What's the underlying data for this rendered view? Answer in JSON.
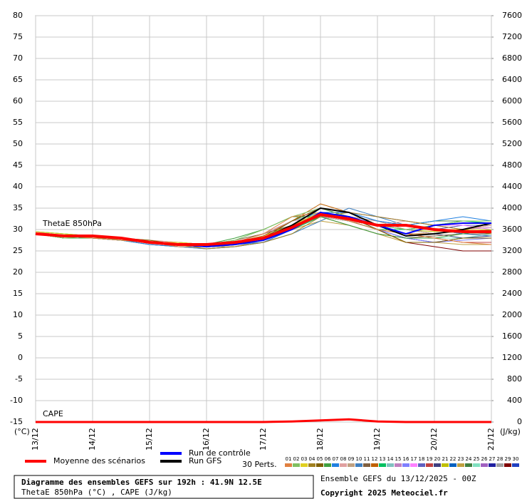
{
  "chart_data": {
    "type": "line",
    "title": "Diagramme des ensembles GEFS sur 192h : 41.9N 12.5E",
    "subtitle": "ThetaE 850hPa (°C) , CAPE (J/kg)",
    "run_label": "Ensemble GEFS du 13/12/2025 - 00Z",
    "copyright": "Copyright 2025 Meteociel.fr",
    "annotations": [
      "ThetaE 850hPa",
      "CAPE"
    ],
    "y_label": "(°C)",
    "y2_label": "(J/kg)",
    "perts_label": "30 Perts.",
    "grid": true,
    "x": [
      0,
      0.5,
      1,
      1.5,
      2,
      2.5,
      3,
      3.5,
      4,
      4.5,
      5,
      5.5,
      6,
      6.5,
      7,
      7.5,
      8
    ],
    "xlim": [
      0,
      8
    ],
    "xticks": [
      {
        "value": 0,
        "label": "13/12"
      },
      {
        "value": 1,
        "label": "14/12"
      },
      {
        "value": 2,
        "label": "15/12"
      },
      {
        "value": 3,
        "label": "16/12"
      },
      {
        "value": 4,
        "label": "17/12"
      },
      {
        "value": 5,
        "label": "18/12"
      },
      {
        "value": 6,
        "label": "19/12"
      },
      {
        "value": 7,
        "label": "20/12"
      },
      {
        "value": 8,
        "label": "21/12"
      }
    ],
    "ylim": [
      -15,
      80
    ],
    "yticks": [
      -15,
      -10,
      -5,
      0,
      5,
      10,
      15,
      20,
      25,
      30,
      35,
      40,
      45,
      50,
      55,
      60,
      65,
      70,
      75,
      80
    ],
    "y2lim": [
      0,
      7600
    ],
    "y2ticks": [
      0,
      400,
      800,
      1200,
      1600,
      2000,
      2400,
      2800,
      3200,
      3600,
      4000,
      4400,
      4800,
      5200,
      5600,
      6000,
      6400,
      6800,
      7200,
      7600
    ],
    "cape": {
      "color": "#ff0000",
      "axis": "y2",
      "values": [
        0,
        0,
        0,
        0,
        0,
        0,
        0,
        0,
        0,
        10,
        30,
        50,
        10,
        0,
        0,
        0,
        0
      ]
    },
    "series": [
      {
        "name": "Moyenne des scénarios",
        "color": "#ff0000",
        "width": 4,
        "values": [
          29,
          28.5,
          28.5,
          28,
          27,
          26.5,
          26.5,
          27,
          28,
          30.5,
          33.5,
          32.5,
          31,
          31,
          30,
          29.5,
          29.5
        ]
      },
      {
        "name": "Run de contrôle",
        "color": "#0000ff",
        "width": 2,
        "values": [
          29,
          28.5,
          28.5,
          28,
          27,
          26.5,
          26,
          26.5,
          27.5,
          30,
          34,
          33,
          31,
          29,
          31,
          31.5,
          31.5
        ]
      },
      {
        "name": "Run GFS",
        "color": "#000000",
        "width": 2,
        "values": [
          29,
          28.5,
          28.5,
          28,
          27,
          26.5,
          26,
          26.5,
          28,
          31,
          35,
          34,
          31,
          28.5,
          29,
          30,
          31.5
        ]
      },
      {
        "name": "01",
        "color": "#e08040",
        "width": 1,
        "values": [
          29,
          28.5,
          28,
          27.5,
          27,
          26,
          26,
          27,
          29,
          33,
          34,
          32,
          30,
          29,
          28,
          27,
          26.5
        ]
      },
      {
        "name": "02",
        "color": "#80c060",
        "width": 1,
        "values": [
          29,
          28,
          28.5,
          27.5,
          27,
          26.5,
          26.5,
          27.5,
          30,
          33,
          35,
          33,
          31,
          30,
          31,
          32,
          32
        ]
      },
      {
        "name": "03",
        "color": "#e0d020",
        "width": 1,
        "values": [
          29.5,
          29,
          28.5,
          28,
          27,
          27,
          26.5,
          27,
          28,
          31,
          34,
          32.5,
          31,
          31,
          30,
          30,
          30
        ]
      },
      {
        "name": "04",
        "color": "#a08020",
        "width": 1,
        "values": [
          29,
          28.5,
          28,
          28,
          27,
          26.5,
          25.5,
          26,
          27,
          29,
          33,
          34,
          33,
          32,
          31,
          30,
          29
        ]
      },
      {
        "name": "05",
        "color": "#806000",
        "width": 1,
        "values": [
          29,
          28.5,
          28.5,
          28,
          27.5,
          26.5,
          26,
          26.5,
          28,
          32,
          35,
          33,
          30,
          27,
          27,
          28,
          28
        ]
      },
      {
        "name": "06",
        "color": "#40a040",
        "width": 1,
        "values": [
          29,
          28,
          28,
          27.5,
          27,
          26.5,
          26.5,
          28,
          30,
          33,
          33,
          31,
          29,
          28,
          28,
          29,
          30
        ]
      },
      {
        "name": "07",
        "color": "#2080e0",
        "width": 1,
        "values": [
          29,
          28.5,
          28,
          27.5,
          26.5,
          26,
          26,
          26.5,
          27,
          30,
          35,
          34,
          32,
          31,
          32,
          33,
          32
        ]
      },
      {
        "name": "08",
        "color": "#e0a0a0",
        "width": 1,
        "values": [
          29.5,
          28.5,
          28.5,
          28,
          27.5,
          27,
          26.5,
          27,
          29,
          32,
          33,
          32,
          31,
          32,
          31,
          30,
          31
        ]
      },
      {
        "name": "09",
        "color": "#c0a080",
        "width": 1,
        "values": [
          29,
          28.5,
          28,
          27.5,
          27,
          26.5,
          26,
          26,
          27.5,
          31,
          34,
          33,
          32,
          30,
          29,
          29.5,
          30
        ]
      },
      {
        "name": "10",
        "color": "#4080c0",
        "width": 1,
        "values": [
          29,
          28.5,
          28.5,
          28,
          27,
          26,
          25.5,
          26,
          27,
          29,
          32,
          35,
          33,
          31,
          30,
          29,
          28.5
        ]
      },
      {
        "name": "11",
        "color": "#806040",
        "width": 1,
        "values": [
          29,
          28,
          28,
          27.5,
          27,
          27,
          26.5,
          27.5,
          29,
          31,
          33,
          31,
          29,
          28,
          28.5,
          29,
          29
        ]
      },
      {
        "name": "12",
        "color": "#c06000",
        "width": 1,
        "values": [
          29,
          28.5,
          28.5,
          28,
          27,
          26.5,
          26,
          27,
          28.5,
          32,
          36,
          34,
          31,
          29,
          29,
          30,
          31
        ]
      },
      {
        "name": "13",
        "color": "#00c060",
        "width": 1,
        "values": [
          29.5,
          29,
          28.5,
          28,
          27,
          26.5,
          26.5,
          27,
          28,
          30,
          33,
          32,
          30,
          30,
          31,
          32,
          31.5
        ]
      },
      {
        "name": "14",
        "color": "#80c0c0",
        "width": 1,
        "values": [
          29,
          28.5,
          28,
          27.5,
          26.5,
          26,
          25.5,
          26,
          27.5,
          31,
          35,
          33,
          31,
          30,
          30,
          29.5,
          29
        ]
      },
      {
        "name": "15",
        "color": "#c080c0",
        "width": 1,
        "values": [
          29,
          28.5,
          28.5,
          28,
          27,
          26.5,
          26,
          26.5,
          28,
          31,
          34,
          33,
          32,
          31,
          30,
          30,
          30.5
        ]
      },
      {
        "name": "16",
        "color": "#8080ff",
        "width": 1,
        "values": [
          29,
          28.5,
          28,
          27.5,
          27,
          26.5,
          26,
          27,
          29,
          32,
          33,
          32,
          30,
          28,
          27,
          27.5,
          28
        ]
      },
      {
        "name": "17",
        "color": "#ff80ff",
        "width": 1,
        "values": [
          29,
          28.5,
          28.5,
          28,
          27.5,
          26.5,
          26,
          26,
          27,
          30,
          34,
          33,
          31,
          30,
          31,
          31,
          30
        ]
      },
      {
        "name": "18",
        "color": "#6060c0",
        "width": 1,
        "values": [
          29,
          28.5,
          28,
          28,
          27,
          26.5,
          26.5,
          27,
          28,
          31,
          33,
          33,
          32,
          31,
          30,
          31,
          31
        ]
      },
      {
        "name": "19",
        "color": "#c04040",
        "width": 1,
        "values": [
          29.5,
          28.5,
          28.5,
          27.5,
          27,
          26.5,
          26,
          26.5,
          27.5,
          30,
          33,
          32,
          30,
          29,
          28,
          27,
          27
        ]
      },
      {
        "name": "20",
        "color": "#404080",
        "width": 1,
        "values": [
          29,
          28.5,
          28,
          27.5,
          27,
          26,
          26,
          26.5,
          28,
          32,
          35,
          33,
          31,
          30,
          29,
          28,
          28.5
        ]
      },
      {
        "name": "21",
        "color": "#c0c000",
        "width": 1,
        "values": [
          29,
          28.5,
          28.5,
          28,
          27,
          26.5,
          26.5,
          27,
          28.5,
          31,
          33,
          32,
          31,
          30,
          29.5,
          30,
          30
        ]
      },
      {
        "name": "22",
        "color": "#0060c0",
        "width": 1,
        "values": [
          29,
          28,
          28,
          27.5,
          27,
          26.5,
          26,
          27,
          28,
          30,
          34,
          34,
          32,
          31,
          30,
          29,
          29
        ]
      },
      {
        "name": "23",
        "color": "#c0a040",
        "width": 1,
        "values": [
          29,
          28.5,
          28.5,
          28,
          27.5,
          27,
          26.5,
          27,
          28,
          30,
          32,
          31,
          29,
          27,
          27,
          26.5,
          26.5
        ]
      },
      {
        "name": "24",
        "color": "#408040",
        "width": 1,
        "values": [
          29,
          28.5,
          28,
          27.5,
          27,
          26.5,
          26,
          26.5,
          28,
          31,
          34,
          32,
          31,
          31,
          32,
          32,
          32
        ]
      },
      {
        "name": "25",
        "color": "#80e0c0",
        "width": 1,
        "values": [
          29.5,
          29,
          28.5,
          28,
          27,
          26.5,
          26,
          27,
          29,
          32,
          34,
          33,
          31,
          29,
          28,
          28,
          29
        ]
      },
      {
        "name": "26",
        "color": "#a060c0",
        "width": 1,
        "values": [
          29,
          28.5,
          28,
          27.5,
          27,
          26,
          25.5,
          26,
          27,
          30,
          34,
          34,
          33,
          32,
          31,
          30,
          30
        ]
      },
      {
        "name": "27",
        "color": "#2020a0",
        "width": 1,
        "values": [
          29,
          28.5,
          28.5,
          28,
          27,
          26.5,
          26,
          26.5,
          28,
          32,
          35,
          33,
          30,
          28,
          27,
          28,
          28
        ]
      },
      {
        "name": "28",
        "color": "#a0a0a0",
        "width": 1,
        "values": [
          29,
          28.5,
          28,
          27.5,
          27,
          26.5,
          26,
          27,
          28,
          30,
          33,
          32,
          31,
          30,
          30,
          31,
          31
        ]
      },
      {
        "name": "29",
        "color": "#800000",
        "width": 1,
        "values": [
          29,
          28,
          28,
          27.5,
          26.5,
          26,
          26,
          27,
          29,
          32,
          34,
          32,
          30,
          27,
          26,
          25,
          25
        ]
      },
      {
        "name": "30",
        "color": "#2040c0",
        "width": 1,
        "values": [
          29,
          28.5,
          28.5,
          28,
          27,
          26.5,
          26.5,
          27,
          28,
          31,
          33,
          32,
          31,
          30,
          30,
          29,
          29
        ]
      }
    ]
  }
}
